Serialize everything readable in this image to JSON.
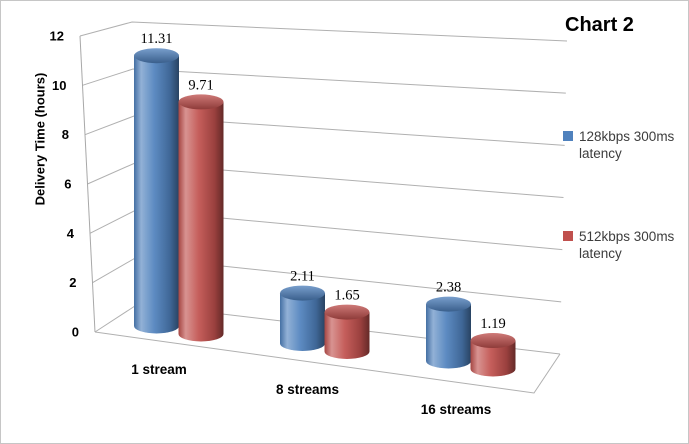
{
  "window": {
    "background": "#ffffff",
    "border_color": "#c6c6c6"
  },
  "chart_data": {
    "type": "bar",
    "subtype": "3d-cylinder",
    "title": "Chart 2",
    "xlabel": "",
    "ylabel": "Delivery Time (hours)",
    "categories": [
      "1 stream",
      "8 streams",
      "16 streams"
    ],
    "series": [
      {
        "name": "128kbps 300ms latency",
        "color": "#4F81BD",
        "values": [
          11.31,
          2.11,
          2.38
        ]
      },
      {
        "name": "512kbps 300ms latency",
        "color": "#C0504D",
        "values": [
          9.71,
          1.65,
          1.19
        ]
      }
    ],
    "data_labels_shown": [
      "11.31",
      "9.71",
      "2.11",
      "1.65",
      "2.38",
      "1.19"
    ],
    "yticks": [
      0,
      2,
      4,
      6,
      8,
      10,
      12
    ],
    "ylim": [
      0,
      12
    ],
    "grid": true,
    "legend_position": "right",
    "gridline_color": "#b0b0b0",
    "axis_color": "#a8a8a8",
    "text_color": "#000000",
    "legend_text_color": "#3d3d3d"
  }
}
